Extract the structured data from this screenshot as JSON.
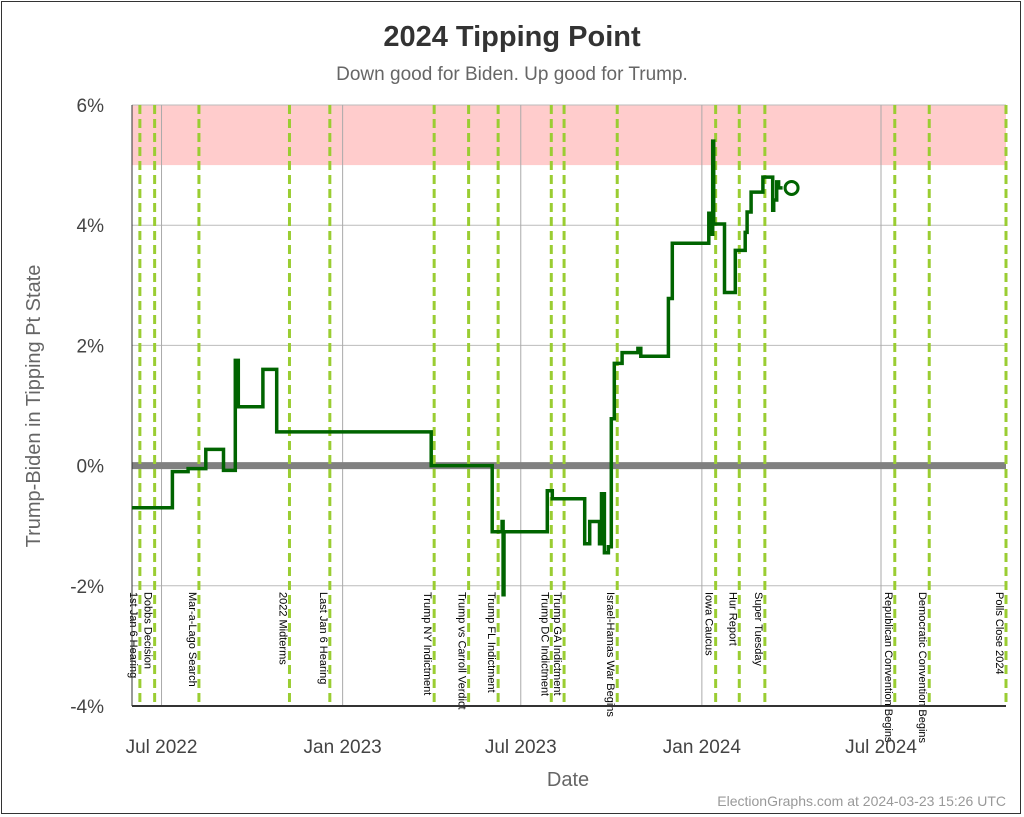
{
  "chart_data": {
    "type": "line",
    "title": "2024 Tipping Point",
    "subtitle": "Down good for Biden. Up good for Trump.",
    "xlabel": "Date",
    "ylabel": "Trump-Biden in Tipping Pt State",
    "xlim": [
      "2022-06-01",
      "2024-11-05"
    ],
    "ylim": [
      -4,
      6
    ],
    "y_ticks": [
      {
        "value": 6,
        "label": "6%"
      },
      {
        "value": 4,
        "label": "4%"
      },
      {
        "value": 2,
        "label": "2%"
      },
      {
        "value": 0,
        "label": "0%"
      },
      {
        "value": -2,
        "label": "-2%"
      },
      {
        "value": -4,
        "label": "-4%"
      }
    ],
    "x_ticks": [
      {
        "date": "2022-07-01",
        "label": "Jul 2022"
      },
      {
        "date": "2023-01-01",
        "label": "Jan 2023"
      },
      {
        "date": "2023-07-01",
        "label": "Jul 2023"
      },
      {
        "date": "2024-01-01",
        "label": "Jan 2024"
      },
      {
        "date": "2024-07-01",
        "label": "Jul 2024"
      }
    ],
    "band": {
      "from": 5,
      "to": 6,
      "color": "#ffcccc"
    },
    "zero_line": {
      "value": 0,
      "color": "#808080"
    },
    "line_color": "#006400",
    "event_color": "#9acd32",
    "current_point": {
      "date": "2024-03-23",
      "value": 4.62
    },
    "events": [
      {
        "date": "2022-06-09",
        "label": "1st Jan 6 Hearing"
      },
      {
        "date": "2022-06-24",
        "label": "Dobbs Decision"
      },
      {
        "date": "2022-08-08",
        "label": "Mar-a-Lago Search"
      },
      {
        "date": "2022-11-08",
        "label": "2022 Midterms"
      },
      {
        "date": "2022-12-19",
        "label": "Last Jan 6 Hearing"
      },
      {
        "date": "2023-04-04",
        "label": "Trump NY Indictment"
      },
      {
        "date": "2023-05-09",
        "label": "Trump vs Carroll Verdict"
      },
      {
        "date": "2023-06-08",
        "label": "Trump FL Indictment"
      },
      {
        "date": "2023-08-01",
        "label": "Trump DC Indictment"
      },
      {
        "date": "2023-08-14",
        "label": "Trump GA Indictment"
      },
      {
        "date": "2023-10-07",
        "label": "Israel-Hamas War Begins"
      },
      {
        "date": "2024-01-15",
        "label": "Iowa Caucus"
      },
      {
        "date": "2024-02-08",
        "label": "Hur Report"
      },
      {
        "date": "2024-03-05",
        "label": "Super Tuesday"
      },
      {
        "date": "2024-07-15",
        "label": "Republican Convention Begins"
      },
      {
        "date": "2024-08-19",
        "label": "Democratic Convention Begins"
      },
      {
        "date": "2024-11-05",
        "label": "Polls Close 2024"
      }
    ],
    "series": [
      {
        "points": [
          [
            "2022-06-01",
            -0.7
          ],
          [
            "2022-07-12",
            -0.7
          ],
          [
            "2022-07-12",
            -0.1
          ],
          [
            "2022-07-28",
            -0.1
          ],
          [
            "2022-07-28",
            -0.05
          ],
          [
            "2022-08-15",
            -0.05
          ],
          [
            "2022-08-15",
            0.27
          ],
          [
            "2022-09-02",
            0.27
          ],
          [
            "2022-09-02",
            -0.08
          ],
          [
            "2022-09-14",
            -0.08
          ],
          [
            "2022-09-14",
            1.75
          ],
          [
            "2022-09-17",
            1.75
          ],
          [
            "2022-09-17",
            0.98
          ],
          [
            "2022-10-12",
            0.98
          ],
          [
            "2022-10-12",
            1.6
          ],
          [
            "2022-10-26",
            1.6
          ],
          [
            "2022-10-26",
            0.56
          ],
          [
            "2023-04-01",
            0.56
          ],
          [
            "2023-04-01",
            0.0
          ],
          [
            "2023-06-02",
            0.0
          ],
          [
            "2023-06-02",
            -1.1
          ],
          [
            "2023-06-12",
            -1.1
          ],
          [
            "2023-06-12",
            -0.93
          ],
          [
            "2023-06-13",
            -0.93
          ],
          [
            "2023-06-13",
            -2.15
          ],
          [
            "2023-06-14",
            -2.15
          ],
          [
            "2023-06-14",
            -1.1
          ],
          [
            "2023-07-28",
            -1.1
          ],
          [
            "2023-07-28",
            -0.42
          ],
          [
            "2023-08-02",
            -0.42
          ],
          [
            "2023-08-02",
            -0.55
          ],
          [
            "2023-09-04",
            -0.55
          ],
          [
            "2023-09-04",
            -1.3
          ],
          [
            "2023-09-09",
            -1.3
          ],
          [
            "2023-09-09",
            -0.93
          ],
          [
            "2023-09-19",
            -0.93
          ],
          [
            "2023-09-19",
            -1.3
          ],
          [
            "2023-09-21",
            -1.3
          ],
          [
            "2023-09-21",
            -0.47
          ],
          [
            "2023-09-24",
            -0.47
          ],
          [
            "2023-09-24",
            -1.45
          ],
          [
            "2023-09-28",
            -1.45
          ],
          [
            "2023-09-28",
            -1.35
          ],
          [
            "2023-10-01",
            -1.35
          ],
          [
            "2023-10-01",
            0.78
          ],
          [
            "2023-10-04",
            0.78
          ],
          [
            "2023-10-04",
            1.7
          ],
          [
            "2023-10-12",
            1.7
          ],
          [
            "2023-10-12",
            1.88
          ],
          [
            "2023-10-28",
            1.88
          ],
          [
            "2023-10-28",
            1.95
          ],
          [
            "2023-10-31",
            1.95
          ],
          [
            "2023-10-31",
            1.82
          ],
          [
            "2023-11-28",
            1.82
          ],
          [
            "2023-11-28",
            2.78
          ],
          [
            "2023-12-02",
            2.78
          ],
          [
            "2023-12-02",
            3.7
          ],
          [
            "2024-01-08",
            3.7
          ],
          [
            "2024-01-08",
            4.2
          ],
          [
            "2024-01-11",
            4.2
          ],
          [
            "2024-01-11",
            3.85
          ],
          [
            "2024-01-12",
            3.85
          ],
          [
            "2024-01-12",
            5.4
          ],
          [
            "2024-01-13",
            5.4
          ],
          [
            "2024-01-13",
            4.02
          ],
          [
            "2024-01-24",
            4.02
          ],
          [
            "2024-01-24",
            2.88
          ],
          [
            "2024-02-04",
            2.88
          ],
          [
            "2024-02-04",
            3.58
          ],
          [
            "2024-02-14",
            3.58
          ],
          [
            "2024-02-14",
            3.88
          ],
          [
            "2024-02-16",
            3.88
          ],
          [
            "2024-02-16",
            4.22
          ],
          [
            "2024-02-20",
            4.22
          ],
          [
            "2024-02-20",
            4.55
          ],
          [
            "2024-03-03",
            4.55
          ],
          [
            "2024-03-03",
            4.8
          ],
          [
            "2024-03-13",
            4.8
          ],
          [
            "2024-03-13",
            4.25
          ],
          [
            "2024-03-14",
            4.25
          ],
          [
            "2024-03-14",
            4.42
          ],
          [
            "2024-03-17",
            4.42
          ],
          [
            "2024-03-17",
            4.72
          ],
          [
            "2024-03-19",
            4.72
          ],
          [
            "2024-03-19",
            4.62
          ],
          [
            "2024-03-23",
            4.62
          ]
        ]
      }
    ]
  },
  "credit": "ElectionGraphs.com at 2024-03-23 15:26 UTC"
}
